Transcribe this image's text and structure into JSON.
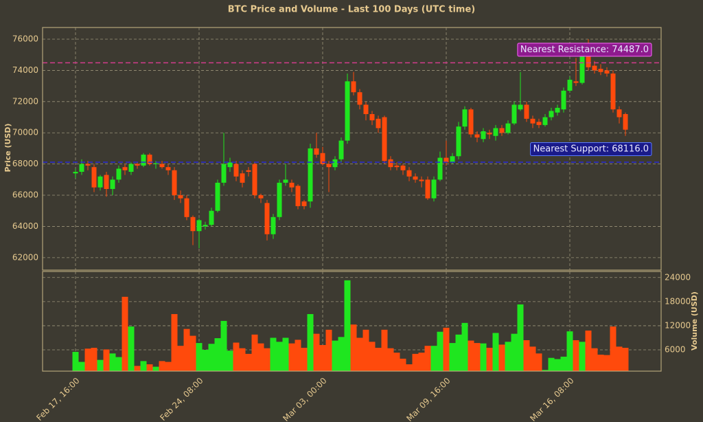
{
  "chart_data": [
    {
      "type": "candlestick",
      "title": "BTC Price and Volume - Last 100 Days (UTC time)",
      "y_label": "Price (USD)",
      "categories": [
        "Feb 17, 16:00",
        null,
        null,
        null,
        null,
        null,
        null,
        null,
        null,
        null,
        null,
        null,
        null,
        null,
        null,
        null,
        null,
        null,
        null,
        null,
        "Feb 24, 08:00",
        null,
        null,
        null,
        null,
        null,
        null,
        null,
        null,
        null,
        null,
        null,
        null,
        null,
        null,
        null,
        null,
        null,
        null,
        null,
        "Mar 03, 00:00",
        null,
        null,
        null,
        null,
        null,
        null,
        null,
        null,
        null,
        null,
        null,
        null,
        null,
        null,
        null,
        null,
        null,
        null,
        null,
        "Mar 09, 16:00",
        null,
        null,
        null,
        null,
        null,
        null,
        null,
        null,
        null,
        null,
        null,
        null,
        null,
        null,
        null,
        null,
        null,
        null,
        null,
        "Mar 16, 08:00",
        null,
        null,
        null,
        null,
        null,
        null,
        null,
        null,
        null
      ],
      "open": [
        67400,
        67500,
        68000,
        67800,
        66500,
        67300,
        66400,
        67000,
        67800,
        67500,
        68000,
        67900,
        68600,
        68000,
        68000,
        67800,
        67600,
        66000,
        65800,
        64600,
        63700,
        64000,
        64100,
        65000,
        66800,
        67800,
        68000,
        67400,
        67600,
        68000,
        66000,
        65500,
        63500,
        64600,
        66800,
        66800,
        66600,
        65600,
        65600,
        69000,
        68700,
        68000,
        67800,
        68300,
        69500,
        73300,
        72600,
        71800,
        71200,
        70900,
        71000,
        68300,
        67900,
        67900,
        67600,
        67200,
        67000,
        67000,
        65800,
        67000,
        68400,
        68100,
        68500,
        70400,
        71500,
        69900,
        69600,
        70000,
        69800,
        70300,
        70000,
        70600,
        71500,
        71800,
        70900,
        70700,
        70500,
        71000,
        71300,
        71500,
        72700,
        73300,
        73200,
        74900,
        74300,
        74100,
        74000,
        73800,
        71500,
        71200
      ],
      "high": [
        67700,
        68300,
        68200,
        68000,
        67300,
        67500,
        67200,
        67900,
        68000,
        68100,
        68100,
        68700,
        68700,
        68200,
        68200,
        68000,
        67800,
        66300,
        66000,
        64700,
        64500,
        64300,
        65200,
        67000,
        70000,
        68400,
        68200,
        67600,
        67800,
        68100,
        66100,
        65700,
        64800,
        67000,
        68000,
        67000,
        66700,
        65700,
        69300,
        70000,
        69100,
        68200,
        68500,
        69700,
        73800,
        73900,
        72800,
        72000,
        71400,
        71100,
        71100,
        68500,
        68100,
        68000,
        67800,
        67400,
        67200,
        67200,
        67200,
        68800,
        69500,
        68700,
        70700,
        71700,
        71600,
        70100,
        70300,
        70200,
        70500,
        70500,
        70800,
        72000,
        73900,
        72000,
        71100,
        70900,
        71200,
        71600,
        71800,
        72900,
        73600,
        74800,
        75300,
        76000,
        74600,
        74400,
        74200,
        74000,
        71700,
        71300
      ],
      "low": [
        67100,
        67300,
        67600,
        66200,
        66300,
        65900,
        66000,
        66800,
        67300,
        67300,
        67700,
        67800,
        67900,
        67700,
        67700,
        67300,
        65700,
        65500,
        64400,
        62800,
        62600,
        63800,
        64000,
        64900,
        66600,
        67500,
        66900,
        66500,
        67200,
        65800,
        65500,
        63100,
        63200,
        64400,
        66600,
        66200,
        65100,
        65100,
        65200,
        68400,
        67900,
        66200,
        67600,
        68100,
        69300,
        72400,
        71500,
        70800,
        70500,
        70000,
        68000,
        67600,
        67600,
        67300,
        66900,
        66800,
        66500,
        65700,
        65600,
        66900,
        67900,
        68000,
        68300,
        70200,
        69700,
        69400,
        69400,
        69600,
        69500,
        69800,
        69900,
        70500,
        71400,
        70700,
        70300,
        70300,
        70400,
        70800,
        71100,
        71300,
        72600,
        73000,
        73100,
        74000,
        73800,
        73700,
        73600,
        71300,
        70600,
        69800
      ],
      "close": [
        67500,
        68000,
        67900,
        66500,
        67200,
        66400,
        67000,
        67700,
        67600,
        68000,
        67900,
        68600,
        68000,
        68050,
        67800,
        67600,
        66000,
        65800,
        64600,
        63700,
        64400,
        64100,
        65000,
        66800,
        68000,
        68100,
        67200,
        66800,
        67500,
        66000,
        65800,
        63500,
        64600,
        66800,
        67000,
        66500,
        65300,
        65300,
        69000,
        68600,
        68000,
        67800,
        68300,
        69500,
        73300,
        72600,
        71800,
        71200,
        70800,
        70300,
        68200,
        67800,
        67800,
        67600,
        67200,
        67000,
        66900,
        65800,
        67000,
        68400,
        68100,
        68500,
        70400,
        71500,
        69900,
        69700,
        70100,
        69900,
        70300,
        70000,
        70600,
        71800,
        71800,
        70900,
        70600,
        70500,
        71000,
        71400,
        71600,
        72700,
        73400,
        73200,
        75000,
        74200,
        74000,
        73900,
        73800,
        71500,
        71000,
        70200
      ],
      "up_color": "#1fe61f",
      "down_color": "#ff4a0c",
      "ylim": [
        61200,
        76750
      ],
      "yticks": [
        62000,
        64000,
        66000,
        68000,
        70000,
        72000,
        74000,
        76000
      ],
      "grid": true,
      "lines": [
        {
          "label": "Nearest Resistance: 74487.0",
          "value": 74487.0,
          "color": "#d23c8c",
          "box_color": "#8e1b8e",
          "edge_color": "#ff66ff"
        },
        {
          "label": "Nearest Support: 68116.0",
          "value": 68116.0,
          "color": "#2c2cd8",
          "box_color": "#1a1a8a",
          "edge_color": "#5a7aff"
        }
      ]
    },
    {
      "type": "bar",
      "y_label": "Volume (USD)",
      "values": [
        5500,
        3000,
        6300,
        6500,
        3500,
        6100,
        5100,
        4200,
        19200,
        11800,
        2000,
        3200,
        2400,
        1800,
        3200,
        3000,
        14900,
        7000,
        11200,
        9500,
        7700,
        6000,
        7500,
        8900,
        13200,
        5800,
        7800,
        6400,
        5000,
        9800,
        7600,
        6400,
        9000,
        8000,
        9000,
        7600,
        8500,
        6500,
        14900,
        10000,
        7200,
        11000,
        8300,
        9200,
        23300,
        12300,
        9000,
        11000,
        8000,
        6500,
        11000,
        6400,
        5300,
        3800,
        2400,
        5000,
        5300,
        7000,
        7000,
        10500,
        11500,
        7700,
        9800,
        12700,
        8300,
        7700,
        7600,
        6500,
        10200,
        7300,
        8000,
        10000,
        17300,
        8400,
        6800,
        5100,
        1000,
        4000,
        3700,
        4300,
        10600,
        8400,
        8000,
        10800,
        6400,
        4800,
        4700,
        11800,
        6800,
        6500
      ],
      "up_color": "#1fe61f",
      "down_color": "#ff4a0c",
      "ylim": [
        700,
        25500
      ],
      "yticks": [
        6000,
        12000,
        18000,
        24000
      ],
      "grid": true
    }
  ]
}
